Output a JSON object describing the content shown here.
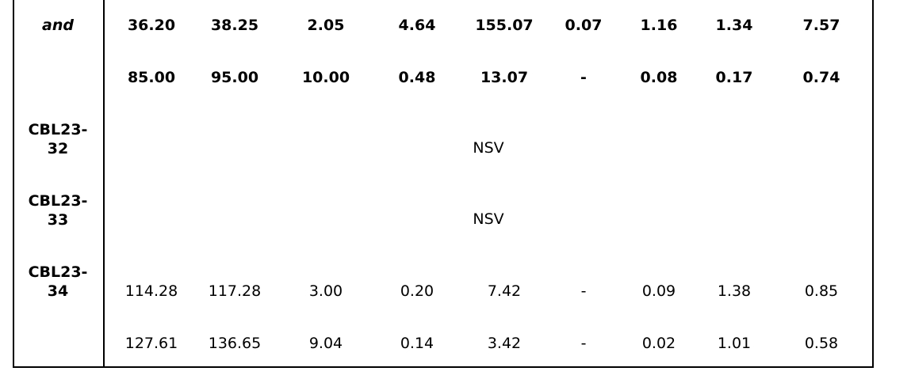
{
  "rows": [
    {
      "label": "and",
      "label_italic": true,
      "bold": true,
      "values": [
        "36.20",
        "38.25",
        "2.05",
        "4.64",
        "155.07",
        "0.07",
        "1.16",
        "1.34",
        "7.57"
      ]
    },
    {
      "label": "",
      "bold": true,
      "values": [
        "85.00",
        "95.00",
        "10.00",
        "0.48",
        "13.07",
        "-",
        "0.08",
        "0.17",
        "0.74"
      ]
    },
    {
      "label": "CBL23-\n32",
      "span_text": "NSV"
    },
    {
      "label": "CBL23-\n33",
      "span_text": "NSV"
    },
    {
      "label": "CBL23-\n34",
      "bold": false,
      "values": [
        "114.28",
        "117.28",
        "3.00",
        "0.20",
        "7.42",
        "-",
        "0.09",
        "1.38",
        "0.85"
      ]
    },
    {
      "label": "",
      "bold": false,
      "values": [
        "127.61",
        "136.65",
        "9.04",
        "0.14",
        "3.42",
        "-",
        "0.02",
        "1.01",
        "0.58"
      ]
    }
  ]
}
